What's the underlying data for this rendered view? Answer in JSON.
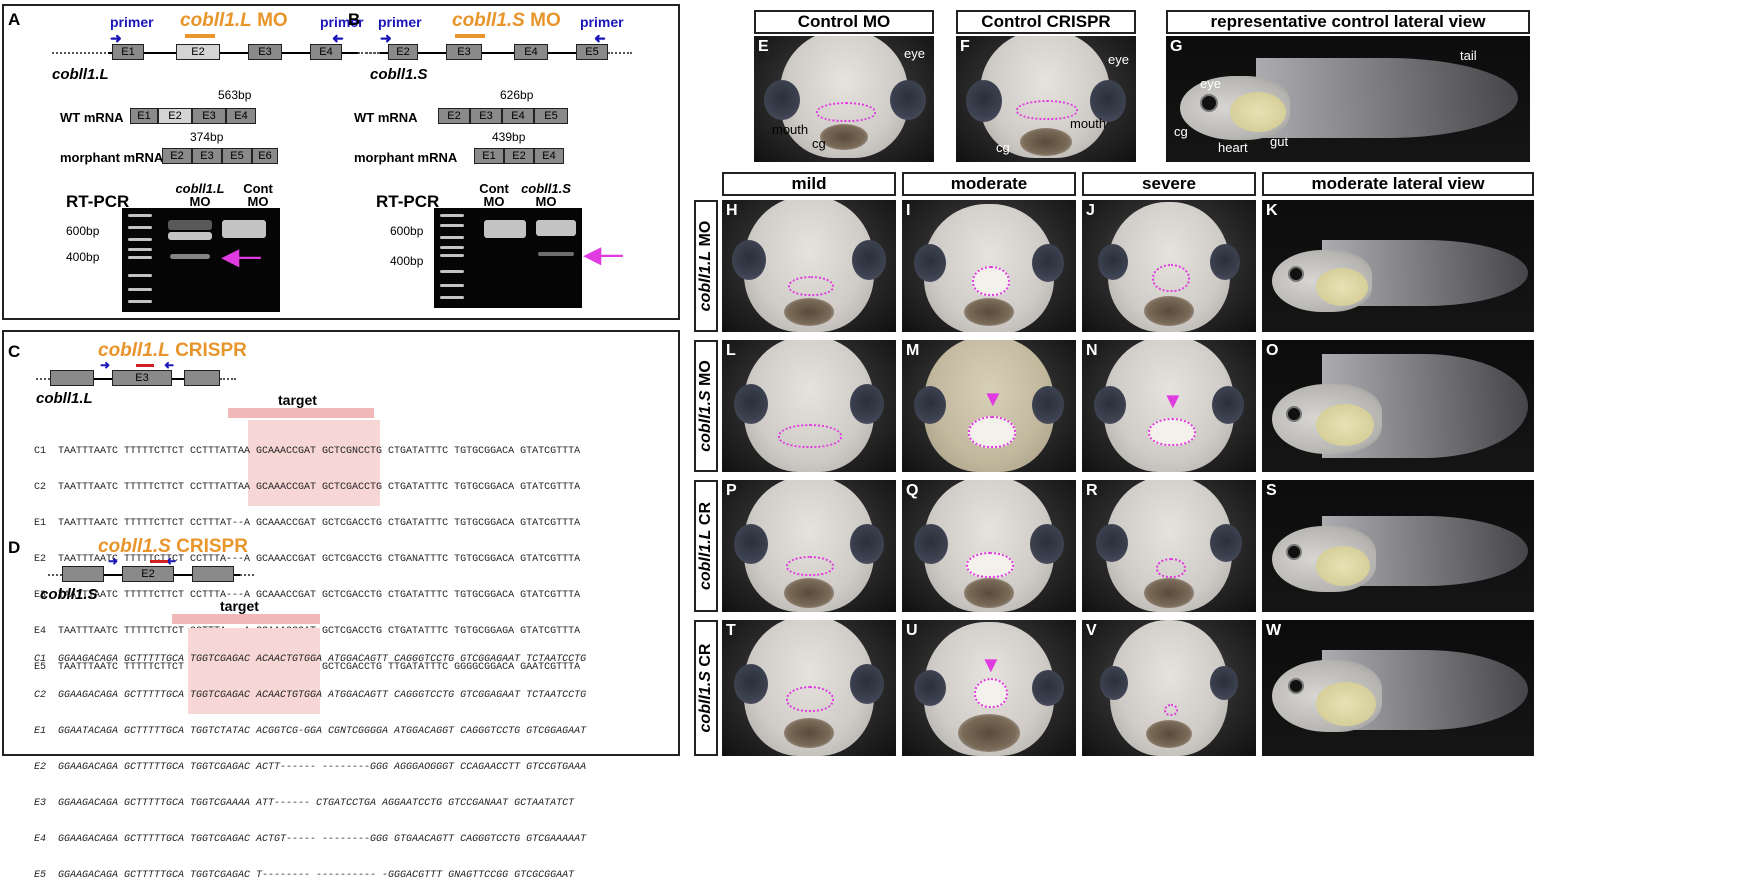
{
  "panelA": {
    "letter": "A",
    "primer_left": "primer",
    "primer_right": "primer",
    "mo_gene": "cobll1.L",
    "mo_suffix": " MO",
    "gene": "cobll1.L",
    "exons": [
      "E1",
      "E2",
      "E3",
      "E4"
    ],
    "wt_label": "WT mRNA",
    "wt_size": "563bp",
    "wt_exons": [
      "E1",
      "E2",
      "E3",
      "E4"
    ],
    "morph_label": "morphant mRNA",
    "morph_size": "374bp",
    "morph_exons": [
      "E2",
      "E3",
      "E5",
      "E6"
    ],
    "rtpcr": "RT-PCR",
    "lane1": "cobll1.L",
    "lane1b": "MO",
    "lane2": "Cont",
    "lane2b": "MO",
    "marker600": "600bp",
    "marker400": "400bp"
  },
  "panelB": {
    "letter": "B",
    "primer_left": "primer",
    "primer_right": "primer",
    "mo_gene": "cobll1.S",
    "mo_suffix": " MO",
    "gene": "cobll1.S",
    "exons": [
      "E2",
      "E3",
      "E4",
      "E5"
    ],
    "wt_label": "WT mRNA",
    "wt_size": "626bp",
    "wt_exons": [
      "E2",
      "E3",
      "E4",
      "E5"
    ],
    "morph_label": "morphant mRNA",
    "morph_size": "439bp",
    "morph_exons": [
      "E1",
      "E2",
      "E4"
    ],
    "rtpcr": "RT-PCR",
    "lane1": "Cont",
    "lane1b": "MO",
    "lane2": "cobll1.S",
    "lane2b": "MO",
    "marker600": "600bp",
    "marker400": "400bp"
  },
  "panelC": {
    "letter": "C",
    "title_gene": "cobll1.L",
    "title_suffix": " CRISPR",
    "gene": "cobll1.L",
    "exon": "E3",
    "target": "target",
    "rows": [
      "C1  TAATTTAATC TTTTTCTTCT CCTTTATTAA GCAAACCGAT GCTCGNCCTG CTGATATTTC TGTGCGGACA GTATCGTTTA",
      "C2  TAATTTAATC TTTTTCTTCT CCTTTATTAA GCAAACCGAT GCTCGACCTG CTGATATTTC TGTGCGGACA GTATCGTTTA",
      "E1  TAATTTAATC TTTTTCTTCT CCTTTAT--A GCAAACCGAT GCTCGACCTG CTGATATTTC TGTGCGGACA GTATCGTTTA",
      "E2  TAATTTAATC TTTTTCTTCT CCTTTA---A GCAAACCGAT GCTCGACCTG CTGANATTTC TGTGCGGACA GTATCGTTTA",
      "E3  TAATTTAATC TTTTTCTTCT CCTTTA---A GCAAACCGAT GCTCGACCTG CTGATATTTC TGTGCGGACA GTATCGTTTA",
      "E4  TAATTTAATC TTTTTCTTCT CCTTTA---A GCAAACCGAT GCTCGACCTG CTGATATTTC TGTGCGGAGA GTATCGTTTA",
      "E5  TAATTTAATC TTTTTCTTCT CCTTTA---A GCAAACCGAG GCTCGACCTG TTGATATTTC GGGGCGGACA GAATCGTTTA"
    ]
  },
  "panelD": {
    "letter": "D",
    "title_gene": "cobll1.S",
    "title_suffix": " CRISPR",
    "gene": "cobll1.S",
    "exon": "E2",
    "target": "target",
    "rows": [
      "C1  GGAAGACAGA GCTTTTTGCA TGGTCGAGAC ACAACTGTGGA ATGGACAGTT CAGGGTCCTG GTCGGAGAAT TCTAATCCTG",
      "C2  GGAAGACAGA GCTTTTTGCA TGGTCGAGAC ACAACTGTGGA ATGGACAGTT CAGGGTCCTG GTCGGAGAAT TCTAATCCTG",
      "E1  GGAATACAGA GCTTTTTGCA TGGTCTATAC ACGGTCG-GGA CGNTCGGGGA ATGGACAGGT CAGGGTCCTG GTCGGAGAAT",
      "E2  GGAAGACAGA GCTTTTTGCA TGGTCGAGAC ACTT------ --------GGG AGGGAOGGGT CCAGAACCTT GTCCGTGAAA",
      "E3  GGAAGACAGA GCTTTTTGCA TGGTCGAAAA ATT------ CTGATCCTGA AGGAATCCTG GTCCGANAAT GCTAATATCT",
      "E4  GGAAGACAGA GCTTTTTGCA TGGTCGAGAC ACTGT----- --------GGG GTGAACAGTT CAGGGTCCTG GTCGAAAAAT",
      "E5  GGAAGACAGA GCTTTTTGCA TGGTCGAGAC T-------- ---------- -GGGACGTTT GNAGTTCCGG GTCGCGGAAT"
    ]
  },
  "headers": {
    "controlMO": "Control MO",
    "controlCRISPR": "Control CRISPR",
    "controlLateral": "representative control lateral view",
    "mild": "mild",
    "moderate": "moderate",
    "severe": "severe",
    "moderateLateral": "moderate lateral view"
  },
  "rowLabels": [
    {
      "gene": "cobll1.L",
      "suffix": " MO"
    },
    {
      "gene": "cobll1.S",
      "suffix": " MO"
    },
    {
      "gene": "cobll1.L",
      "suffix": " CR"
    },
    {
      "gene": "cobll1.S",
      "suffix": " CR"
    }
  ],
  "photoLetters": {
    "E": "E",
    "F": "F",
    "G": "G",
    "H": "H",
    "I": "I",
    "J": "J",
    "K": "K",
    "L": "L",
    "M": "M",
    "N": "N",
    "O": "O",
    "P": "P",
    "Q": "Q",
    "R": "R",
    "S": "S",
    "T": "T",
    "U": "U",
    "V": "V",
    "W": "W"
  },
  "annotations": {
    "eye": "eye",
    "mouth": "mouth",
    "cg": "cg",
    "tail": "tail",
    "heart": "heart",
    "gut": "gut"
  },
  "colors": {
    "primer": "#1a16b8",
    "mo": "#e8952b",
    "highlight": "#e03be0",
    "target": "#f0b8b8"
  }
}
